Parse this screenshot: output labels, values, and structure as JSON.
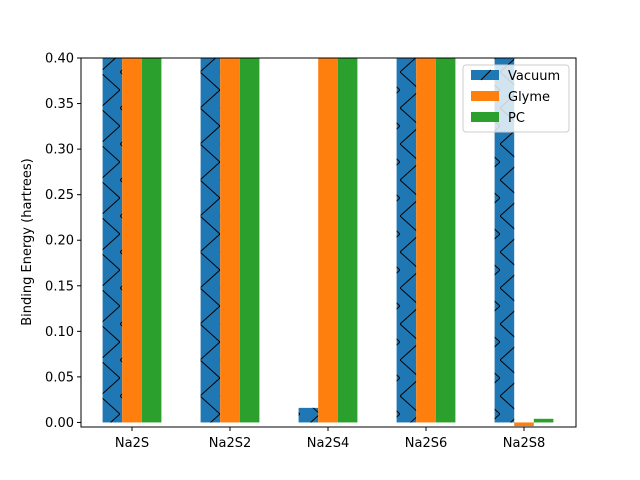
{
  "chart_data": {
    "type": "bar",
    "title": "",
    "xlabel": "",
    "ylabel": "Binding Energy (hartrees)",
    "categories": [
      "Na2S",
      "Na2S2",
      "Na2S4",
      "Na2S6",
      "Na2S8"
    ],
    "ylim": [
      -0.005,
      0.4
    ],
    "yticks": [
      "0.00",
      "0.05",
      "0.10",
      "0.15",
      "0.20",
      "0.25",
      "0.30",
      "0.35",
      "0.40"
    ],
    "ytick_values": [
      0,
      0.05,
      0.1,
      0.15,
      0.2,
      0.25,
      0.3,
      0.35,
      0.4
    ],
    "grid": false,
    "legend_position": "top-right",
    "series": [
      {
        "name": "Vacuum",
        "color": "#1f77b4",
        "hatch": "diagonal",
        "values": [
          0.4,
          0.4,
          0.016,
          0.4,
          0.4
        ]
      },
      {
        "name": "Glyme",
        "color": "#ff7f0e",
        "hatch": "none",
        "values": [
          0.4,
          0.4,
          0.4,
          0.4,
          -0.004
        ]
      },
      {
        "name": "PC",
        "color": "#2ca02c",
        "hatch": "none",
        "values": [
          0.4,
          0.4,
          0.4,
          0.4,
          0.004
        ]
      }
    ]
  }
}
